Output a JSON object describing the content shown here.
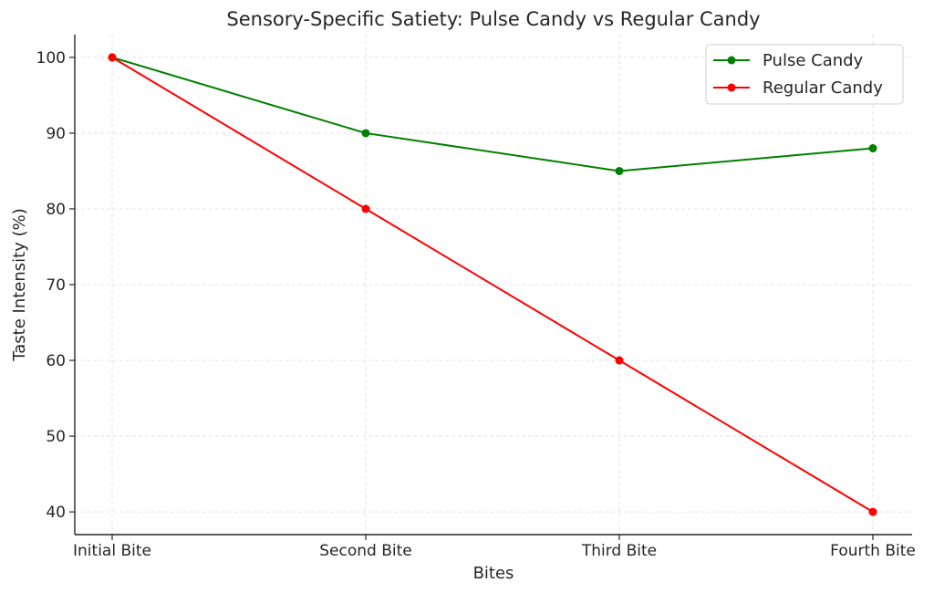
{
  "chart_data": {
    "type": "line",
    "title": "Sensory-Specific Satiety: Pulse Candy vs Regular Candy",
    "xlabel": "Bites",
    "ylabel": "Taste Intensity (%)",
    "categories": [
      "Initial Bite",
      "Second Bite",
      "Third Bite",
      "Fourth Bite"
    ],
    "series": [
      {
        "name": "Pulse Candy",
        "color": "#008000",
        "values": [
          100,
          90,
          85,
          88
        ]
      },
      {
        "name": "Regular Candy",
        "color": "#ff0000",
        "values": [
          100,
          80,
          60,
          40
        ]
      }
    ],
    "ylim": [
      37,
      103
    ],
    "yticks": [
      40,
      50,
      60,
      70,
      80,
      90,
      100
    ],
    "grid": true,
    "legend_position": "top-right",
    "marker": "circle"
  }
}
